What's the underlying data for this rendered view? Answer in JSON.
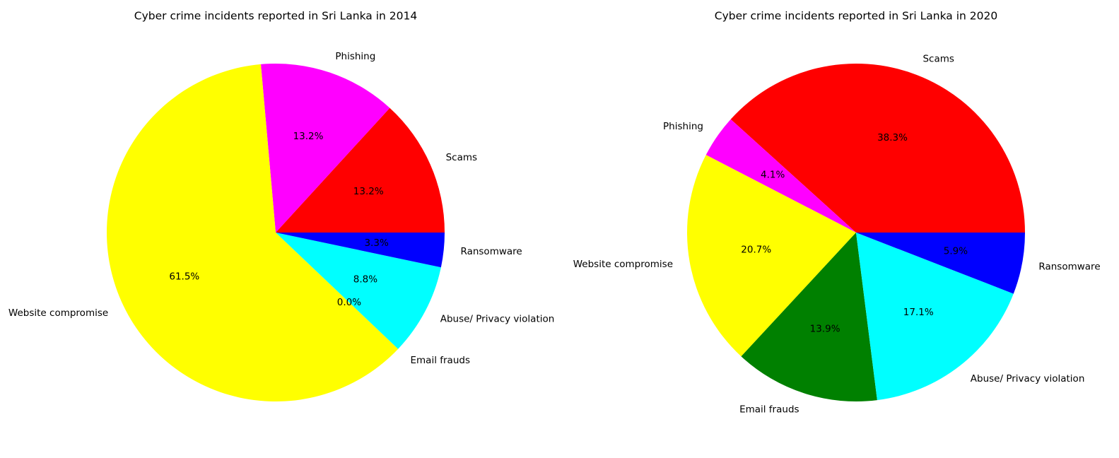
{
  "chart_data": [
    {
      "type": "pie",
      "title": "Cyber crime incidents reported in Sri Lanka in 2014",
      "start_angle": 0,
      "direction": "counterclockwise",
      "slices": [
        {
          "label": "Scams",
          "percent": "13.2%",
          "value": 13.2,
          "color": "#ff0000"
        },
        {
          "label": "Phishing",
          "percent": "13.2%",
          "value": 13.2,
          "color": "#ff00ff"
        },
        {
          "label": "Website compromise",
          "percent": "61.5%",
          "value": 61.5,
          "color": "#ffff00"
        },
        {
          "label": "Email frauds",
          "percent": "0.0%",
          "value": 0.0,
          "color": "#008000"
        },
        {
          "label": "Abuse/ Privacy violation",
          "percent": "8.8%",
          "value": 8.8,
          "color": "#00ffff"
        },
        {
          "label": "Ransomware",
          "percent": "3.3%",
          "value": 3.3,
          "color": "#0000ff"
        }
      ]
    },
    {
      "type": "pie",
      "title": "Cyber crime incidents reported in Sri Lanka in 2020",
      "start_angle": 0,
      "direction": "counterclockwise",
      "slices": [
        {
          "label": "Scams",
          "percent": "38.3%",
          "value": 38.3,
          "color": "#ff0000"
        },
        {
          "label": "Phishing",
          "percent": "4.1%",
          "value": 4.1,
          "color": "#ff00ff"
        },
        {
          "label": "Website compromise",
          "percent": "20.7%",
          "value": 20.7,
          "color": "#ffff00"
        },
        {
          "label": "Email frauds",
          "percent": "13.9%",
          "value": 13.9,
          "color": "#008000"
        },
        {
          "label": "Abuse/ Privacy violation",
          "percent": "17.1%",
          "value": 17.1,
          "color": "#00ffff"
        },
        {
          "label": "Ransomware",
          "percent": "5.9%",
          "value": 5.9,
          "color": "#0000ff"
        }
      ]
    }
  ]
}
